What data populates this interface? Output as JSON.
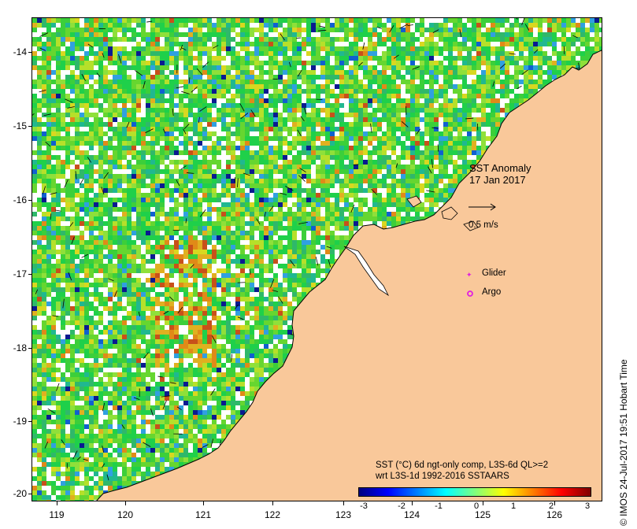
{
  "annotation": {
    "title_line1": "SST Anomaly",
    "title_line2": "17 Jan 2017",
    "vector_scale_label": "0.5 m/s"
  },
  "legend": {
    "glider_label": "Glider",
    "argo_label": "Argo",
    "glider_color": "#e020e0",
    "argo_color": "#e020e0"
  },
  "description": {
    "line1": "SST (°C) 6d ngt-only comp, L3S-6d QL>=2",
    "line2": "wrt L3S-1d 1992-2016 SSTAARS"
  },
  "colorbar": {
    "ticks": [
      "-3",
      "-2",
      "-1",
      "0",
      "1",
      "2",
      "3"
    ],
    "colors": [
      "#00007f",
      "#0000ff",
      "#007fff",
      "#00ffff",
      "#7fff7f",
      "#ffff00",
      "#ff7f00",
      "#ff0000",
      "#7f0000"
    ]
  },
  "axes": {
    "lon_ticks": [
      "119",
      "120",
      "121",
      "122",
      "123",
      "124",
      "125",
      "126"
    ],
    "lat_ticks": [
      "-14",
      "-15",
      "-16",
      "-17",
      "-18",
      "-19",
      "-20"
    ]
  },
  "credit": "©  IMOS 24-Jul-2017 19:51 Hobart Time",
  "colors": {
    "land": "#f9c89a",
    "no_data": "#ffffff"
  }
}
